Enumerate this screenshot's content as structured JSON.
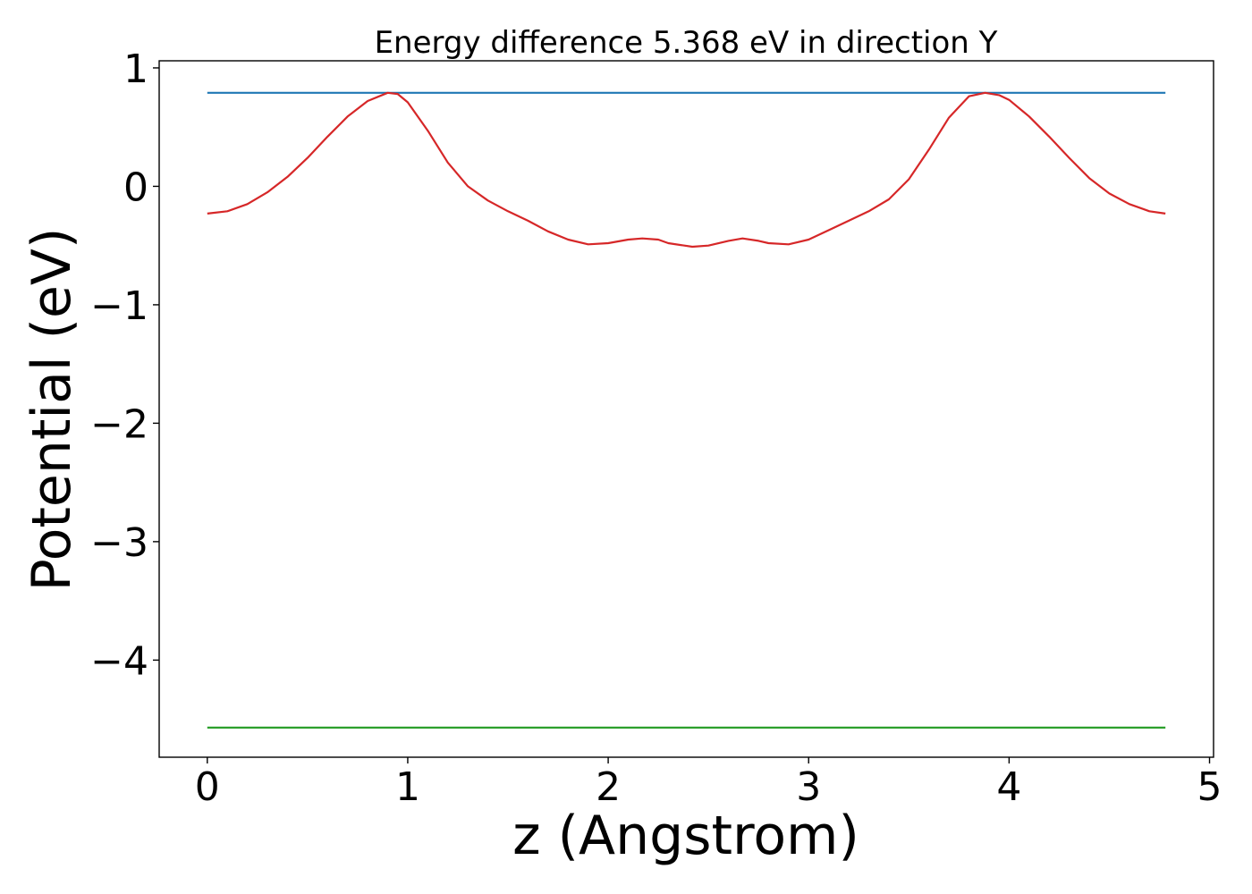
{
  "chart_data": {
    "type": "line",
    "title": "Energy difference 5.368 eV in direction Y",
    "xlabel": "z (Angstrom)",
    "ylabel": "Potential (eV)",
    "xlim": [
      -0.24,
      5.02
    ],
    "ylim": [
      -4.82,
      1.06
    ],
    "xticks": [
      0,
      1,
      2,
      3,
      4,
      5
    ],
    "xtick_labels": [
      "0",
      "1",
      "2",
      "3",
      "4",
      "5"
    ],
    "yticks": [
      1,
      0,
      -1,
      -2,
      -3,
      -4
    ],
    "ytick_labels": [
      "1",
      "0",
      "−1",
      "−2",
      "−3",
      "−4"
    ],
    "grid": false,
    "series": [
      {
        "color": "#1f77b4",
        "x": [
          0,
          4.78
        ],
        "y": [
          0.79,
          0.79
        ]
      },
      {
        "color": "#2ca02c",
        "x": [
          0,
          4.78
        ],
        "y": [
          -4.57,
          -4.57
        ]
      },
      {
        "color": "#d62728",
        "x": [
          0.0,
          0.1,
          0.2,
          0.3,
          0.4,
          0.5,
          0.6,
          0.7,
          0.8,
          0.9,
          0.95,
          1.0,
          1.1,
          1.2,
          1.3,
          1.4,
          1.5,
          1.6,
          1.7,
          1.8,
          1.9,
          2.0,
          2.1,
          2.17,
          2.25,
          2.3,
          2.42,
          2.5,
          2.6,
          2.67,
          2.75,
          2.8,
          2.9,
          3.0,
          3.1,
          3.2,
          3.3,
          3.4,
          3.5,
          3.6,
          3.7,
          3.8,
          3.88,
          3.95,
          4.0,
          4.1,
          4.2,
          4.3,
          4.4,
          4.5,
          4.6,
          4.7,
          4.78
        ],
        "y": [
          -0.23,
          -0.21,
          -0.15,
          -0.05,
          0.08,
          0.24,
          0.42,
          0.59,
          0.72,
          0.79,
          0.78,
          0.71,
          0.47,
          0.2,
          0.0,
          -0.12,
          -0.21,
          -0.29,
          -0.38,
          -0.45,
          -0.49,
          -0.48,
          -0.45,
          -0.44,
          -0.45,
          -0.48,
          -0.51,
          -0.5,
          -0.46,
          -0.44,
          -0.46,
          -0.48,
          -0.49,
          -0.45,
          -0.37,
          -0.29,
          -0.21,
          -0.11,
          0.06,
          0.31,
          0.58,
          0.76,
          0.79,
          0.77,
          0.73,
          0.59,
          0.42,
          0.24,
          0.07,
          -0.06,
          -0.15,
          -0.21,
          -0.23
        ]
      }
    ]
  }
}
